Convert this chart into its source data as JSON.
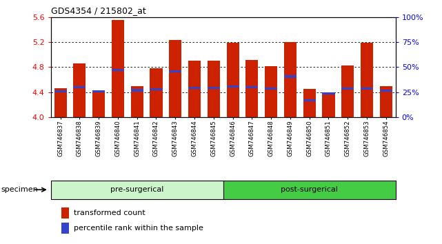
{
  "title": "GDS4354 / 215802_at",
  "samples": [
    "GSM746837",
    "GSM746838",
    "GSM746839",
    "GSM746840",
    "GSM746841",
    "GSM746842",
    "GSM746843",
    "GSM746844",
    "GSM746845",
    "GSM746846",
    "GSM746847",
    "GSM746848",
    "GSM746849",
    "GSM746850",
    "GSM746851",
    "GSM746852",
    "GSM746853",
    "GSM746854"
  ],
  "bar_values": [
    4.46,
    4.86,
    4.42,
    5.55,
    4.5,
    4.78,
    5.23,
    4.9,
    4.9,
    5.19,
    4.91,
    4.81,
    5.2,
    4.45,
    4.38,
    4.83,
    5.19,
    4.5
  ],
  "blue_values": [
    4.41,
    4.48,
    4.41,
    4.75,
    4.43,
    4.45,
    4.73,
    4.47,
    4.47,
    4.49,
    4.48,
    4.46,
    4.65,
    4.27,
    4.38,
    4.46,
    4.46,
    4.42
  ],
  "ylim": [
    4.0,
    5.6
  ],
  "yticks": [
    4.0,
    4.4,
    4.8,
    5.2,
    5.6
  ],
  "right_yticks": [
    0,
    25,
    50,
    75,
    100
  ],
  "bar_color": "#cc2200",
  "blue_color": "#3344cc",
  "pre_color": "#ccf5cc",
  "post_color": "#44cc44",
  "pre_label": "pre-surgerical",
  "post_label": "post-surgerical",
  "pre_count": 9,
  "post_count": 9,
  "legend_items": [
    "transformed count",
    "percentile rank within the sample"
  ],
  "specimen_label": "specimen"
}
